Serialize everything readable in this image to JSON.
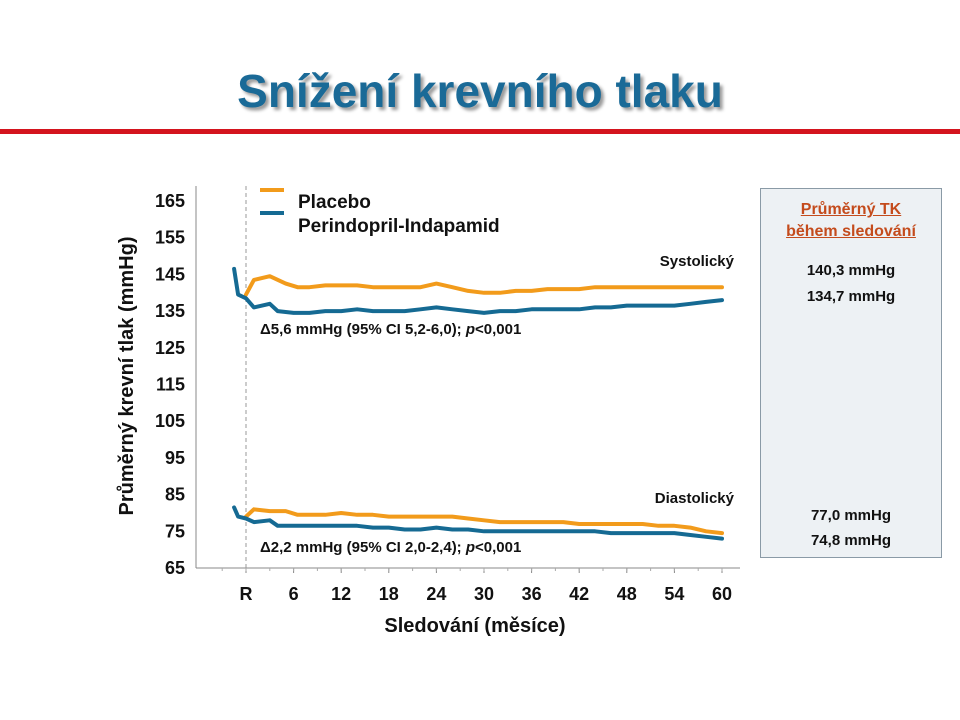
{
  "slide": {
    "title": "Snížení krevního tlaku"
  },
  "summary": {
    "title_line1": "Průměrný TK",
    "title_line2": "během sledování",
    "systolic_placebo": "140,3 mmHg",
    "systolic_active": "134,7 mmHg",
    "diastolic_placebo": "77,0 mmHg",
    "diastolic_active": "74,8 mmHg"
  },
  "colors": {
    "placebo": "#f29b1b",
    "active": "#156a93",
    "title": "#1a6a97",
    "rule": "#d4141e",
    "summary_title": "#c44b1c"
  },
  "chart_data": {
    "type": "line",
    "xlabel": "Sledování (měsíce)",
    "ylabel": "Průměrný krevní tlak (mmHg)",
    "ylim": [
      65,
      165
    ],
    "xlim": [
      -3,
      60
    ],
    "y_ticks": [
      "165",
      "155",
      "145",
      "135",
      "125",
      "115",
      "105",
      "95",
      "85",
      "75",
      "65"
    ],
    "x_ticks": [
      {
        "value": 0,
        "label": "R"
      },
      {
        "value": 6,
        "label": "6"
      },
      {
        "value": 12,
        "label": "12"
      },
      {
        "value": 18,
        "label": "18"
      },
      {
        "value": 24,
        "label": "24"
      },
      {
        "value": 30,
        "label": "30"
      },
      {
        "value": 36,
        "label": "36"
      },
      {
        "value": 42,
        "label": "42"
      },
      {
        "value": 48,
        "label": "48"
      },
      {
        "value": 54,
        "label": "54"
      },
      {
        "value": 60,
        "label": "60"
      }
    ],
    "legend": [
      "Placebo",
      "Perindopril-Indapamid"
    ],
    "legend_position": "top-left",
    "randomization_month": 0,
    "series": [
      {
        "name": "Placebo",
        "group": "systolic",
        "color": "#f29b1b",
        "x": [
          0,
          1,
          3,
          5,
          6.5,
          8,
          10,
          12,
          14,
          16,
          18,
          20,
          22,
          24,
          26,
          28,
          30,
          32,
          34,
          36,
          38,
          40,
          42,
          44,
          46,
          48,
          50,
          52,
          54,
          56,
          58,
          60
        ],
        "y": [
          139.5,
          143.5,
          144.5,
          142.5,
          141.5,
          141.5,
          142,
          142,
          142,
          141.5,
          141.5,
          141.5,
          141.5,
          142.5,
          141.5,
          140.5,
          140,
          140,
          140.5,
          140.5,
          141,
          141,
          141,
          141.5,
          141.5,
          141.5,
          141.5,
          141.5,
          141.5,
          141.5,
          141.5,
          141.5
        ]
      },
      {
        "name": "Perindopril-Indapamid",
        "group": "systolic",
        "color": "#156a93",
        "x": [
          -1.5,
          -1,
          0,
          1,
          3,
          4,
          6,
          8,
          10,
          12,
          14,
          16,
          18,
          20,
          22,
          24,
          26,
          28,
          30,
          32,
          34,
          36,
          38,
          40,
          42,
          44,
          46,
          48,
          50,
          52,
          54,
          56,
          58,
          60
        ],
        "y": [
          146.5,
          139.5,
          138.5,
          136,
          137,
          135,
          134.5,
          134.5,
          135,
          135,
          135.5,
          135,
          135,
          135,
          135.5,
          136,
          135.5,
          135,
          134.5,
          135,
          135,
          135.5,
          135.5,
          135.5,
          135.5,
          136,
          136,
          136.5,
          136.5,
          136.5,
          136.5,
          137,
          137.5,
          138
        ]
      },
      {
        "name": "Placebo",
        "group": "diastolic",
        "color": "#f29b1b",
        "x": [
          0,
          1,
          3,
          5,
          6.5,
          8,
          10,
          12,
          14,
          16,
          18,
          20,
          22,
          24,
          26,
          28,
          30,
          32,
          34,
          36,
          38,
          40,
          42,
          44,
          46,
          48,
          50,
          52,
          54,
          56,
          58,
          60
        ],
        "y": [
          79,
          81,
          80.5,
          80.5,
          79.5,
          79.5,
          79.5,
          80,
          79.5,
          79.5,
          79,
          79,
          79,
          79,
          79,
          78.5,
          78,
          77.5,
          77.5,
          77.5,
          77.5,
          77.5,
          77,
          77,
          77,
          77,
          77,
          76.5,
          76.5,
          76,
          75,
          74.5
        ]
      },
      {
        "name": "Perindopril-Indapamid",
        "group": "diastolic",
        "color": "#156a93",
        "x": [
          -1.5,
          -1,
          0,
          1,
          3,
          4,
          6,
          8,
          10,
          12,
          14,
          16,
          18,
          20,
          22,
          24,
          26,
          28,
          30,
          32,
          34,
          36,
          38,
          40,
          42,
          44,
          46,
          48,
          50,
          52,
          54,
          56,
          58,
          60
        ],
        "y": [
          81.5,
          79,
          78.5,
          77.5,
          78,
          76.5,
          76.5,
          76.5,
          76.5,
          76.5,
          76.5,
          76,
          76,
          75.5,
          75.5,
          76,
          75.5,
          75.5,
          75,
          75,
          75,
          75,
          75,
          75,
          75,
          75,
          74.5,
          74.5,
          74.5,
          74.5,
          74.5,
          74,
          73.5,
          73
        ]
      }
    ],
    "annotations": {
      "systolic_label": "Systolický",
      "diastolic_label": "Diastolický",
      "systolic_delta_symbol": "Δ",
      "systolic_delta_text": "5,6 mmHg (95% CI 5,2-6,0); ",
      "systolic_p_symbol": "p",
      "systolic_p_text": "<0,001",
      "diastolic_delta_symbol": "Δ",
      "diastolic_delta_text": "2,2 mmHg (95% CI 2,0-2,4); ",
      "diastolic_p_symbol": "p",
      "diastolic_p_text": "<0,001"
    }
  }
}
